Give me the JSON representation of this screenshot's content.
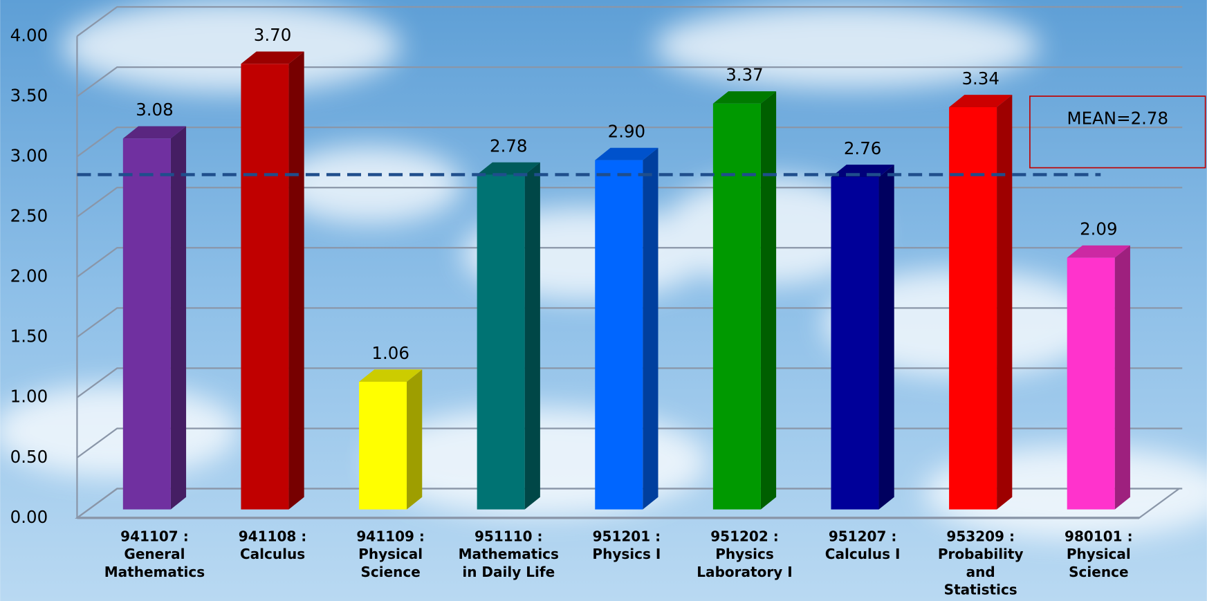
{
  "chart_data": {
    "type": "bar3d",
    "categories": [
      "941107 :\nGeneral\nMathematics",
      "941108 :\nCalculus",
      "941109 :\nPhysical\nScience",
      "951110 :\nMathematics\nin Daily Life",
      "951201 :\nPhysics I",
      "951202 :\nPhysics\nLaboratory I",
      "951207 :\nCalculus I",
      "953209 :\nProbability\nand\nStatistics",
      "980101 :\nPhysical\nScience"
    ],
    "values": [
      3.08,
      3.7,
      1.06,
      2.78,
      2.9,
      3.37,
      2.76,
      3.34,
      2.09
    ],
    "value_labels": [
      "3.08",
      "3.70",
      "1.06",
      "2.78",
      "2.90",
      "3.37",
      "2.76",
      "3.34",
      "2.09"
    ],
    "colors": [
      "#7030a0",
      "#c00000",
      "#ffff00",
      "#007373",
      "#0066ff",
      "#009900",
      "#000099",
      "#ff0000",
      "#ff33cc"
    ],
    "ylim": [
      0,
      4
    ],
    "yticks": [
      {
        "value": 0,
        "label": "0.00"
      },
      {
        "value": 0.5,
        "label": "0.50"
      },
      {
        "value": 1,
        "label": "1.00"
      },
      {
        "value": 1.5,
        "label": "1.50"
      },
      {
        "value": 2,
        "label": "2.00"
      },
      {
        "value": 2.5,
        "label": "2.50"
      },
      {
        "value": 3,
        "label": "3.00"
      },
      {
        "value": 3.5,
        "label": "3.50"
      },
      {
        "value": 4,
        "label": "4.00"
      }
    ],
    "grid": true,
    "mean_line": {
      "value": 2.78,
      "label": "MEAN=2.78",
      "color": "#1f4e8c"
    }
  }
}
